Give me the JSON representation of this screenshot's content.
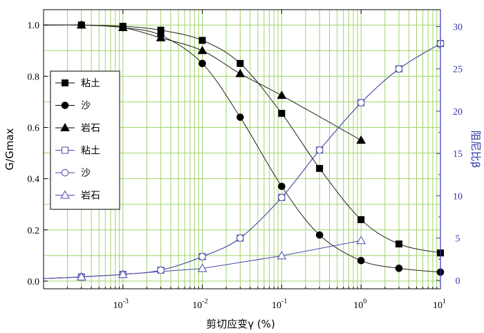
{
  "chart_data": {
    "type": "line",
    "x_scale": "log",
    "xlabel": "剪切应变γ (%)",
    "ylabel_left": "G/Gmax",
    "ylabel_right": "阻尼比β",
    "xlim": [
      0.0001,
      10
    ],
    "ylim_left": [
      -0.03,
      1.06
    ],
    "ylim_right": [
      -1,
      32
    ],
    "grid": true,
    "legend_position": "left",
    "x_ticks": [
      {
        "value": 0.001,
        "base": "10",
        "exp": "-3"
      },
      {
        "value": 0.01,
        "base": "10",
        "exp": "-2"
      },
      {
        "value": 0.1,
        "base": "10",
        "exp": "-1"
      },
      {
        "value": 1,
        "base": "10",
        "exp": "0"
      },
      {
        "value": 10,
        "base": "10",
        "exp": "1"
      }
    ],
    "y_ticks_left": [
      "0.0",
      "0.2",
      "0.4",
      "0.6",
      "0.8",
      "1.0"
    ],
    "y_ticks_right": [
      "0",
      "5",
      "10",
      "15",
      "20",
      "25",
      "30"
    ],
    "colors": {
      "grid": "#9fd36a",
      "left_axis": "#000000",
      "right_axis": "#3333aa",
      "damping_series": "#4a4aa8",
      "modulus_series": "#222222"
    },
    "series": [
      {
        "name": "粘土",
        "axis": "left",
        "marker": "square-filled",
        "x": [
          0.0003,
          0.001,
          0.003,
          0.01,
          0.03,
          0.1,
          0.3,
          1,
          3,
          10
        ],
        "y": [
          1.0,
          0.995,
          0.98,
          0.94,
          0.85,
          0.655,
          0.44,
          0.24,
          0.145,
          0.11
        ]
      },
      {
        "name": "沙",
        "axis": "left",
        "marker": "circle-filled",
        "x": [
          0.0003,
          0.001,
          0.003,
          0.01,
          0.03,
          0.1,
          0.3,
          1,
          3,
          10
        ],
        "y": [
          1.0,
          0.99,
          0.96,
          0.85,
          0.64,
          0.37,
          0.18,
          0.08,
          0.05,
          0.035
        ]
      },
      {
        "name": "岩石",
        "axis": "left",
        "marker": "triangle-filled",
        "x": [
          0.0003,
          0.001,
          0.003,
          0.01,
          0.03,
          0.1,
          1
        ],
        "y": [
          1.0,
          0.99,
          0.95,
          0.9,
          0.81,
          0.725,
          0.55
        ]
      },
      {
        "name": "粘土",
        "axis": "right",
        "marker": "square-open",
        "x": [
          0.0003,
          0.001,
          0.003,
          0.01,
          0.03,
          0.1,
          0.3,
          1,
          3,
          10
        ],
        "y": [
          0.4,
          0.7,
          1.2,
          2.8,
          5.0,
          9.8,
          15.4,
          21.0,
          25.0,
          28.0
        ]
      },
      {
        "name": "沙",
        "axis": "right",
        "marker": "circle-open",
        "x": [
          0.0003,
          0.001,
          0.003,
          0.01,
          0.03,
          0.1,
          0.3,
          1,
          3,
          10
        ],
        "y": [
          0.4,
          0.7,
          1.2,
          2.8,
          5.0,
          9.8,
          15.4,
          21.0,
          25.0,
          28.0
        ]
      },
      {
        "name": "岩石",
        "axis": "right",
        "marker": "triangle-open",
        "x": [
          0.0003,
          0.001,
          0.01,
          0.1,
          1
        ],
        "y": [
          0.4,
          0.7,
          1.4,
          2.9,
          4.7
        ]
      }
    ]
  }
}
